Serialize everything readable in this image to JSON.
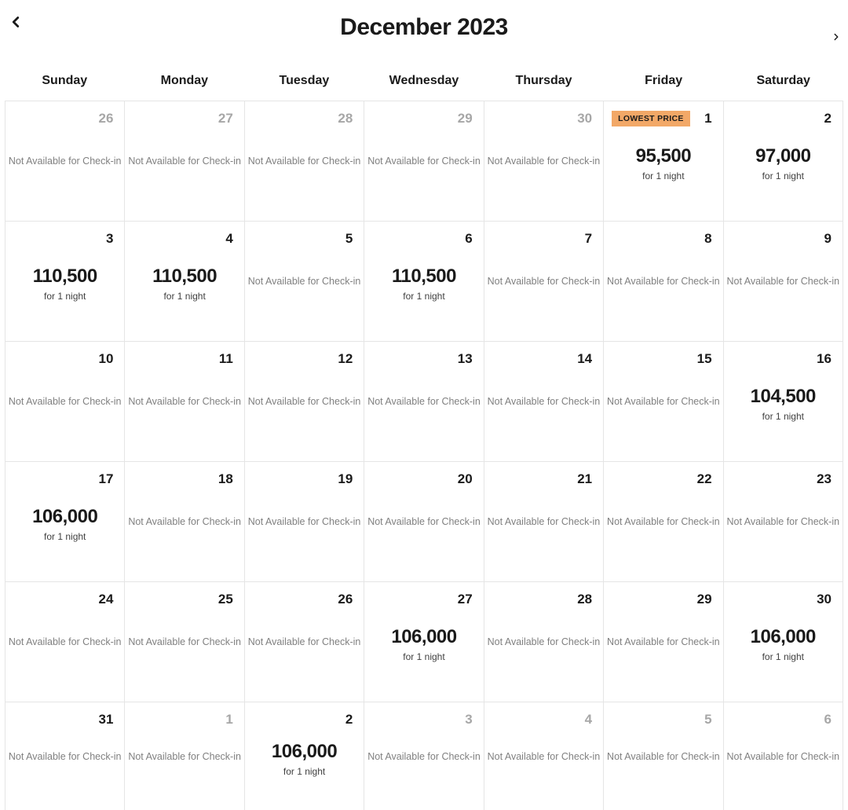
{
  "header": {
    "title": "December 2023"
  },
  "labels": {
    "not_available": "Not Available for Check-in",
    "per_night": "for 1 night",
    "lowest_price": "LOWEST PRICE"
  },
  "colors": {
    "badge_bg": "#f2a867",
    "border": "#e5e5e5",
    "muted_day": "#a7a7a7",
    "na_text": "#808080"
  },
  "daysOfWeek": [
    "Sunday",
    "Monday",
    "Tuesday",
    "Wednesday",
    "Thursday",
    "Friday",
    "Saturday"
  ],
  "cells": [
    {
      "day": "26",
      "muted": true,
      "na": true
    },
    {
      "day": "27",
      "muted": true,
      "na": true
    },
    {
      "day": "28",
      "muted": true,
      "na": true
    },
    {
      "day": "29",
      "muted": true,
      "na": true
    },
    {
      "day": "30",
      "muted": true,
      "na": true
    },
    {
      "day": "1",
      "price": "95,500",
      "badge": true
    },
    {
      "day": "2",
      "price": "97,000"
    },
    {
      "day": "3",
      "price": "110,500"
    },
    {
      "day": "4",
      "price": "110,500"
    },
    {
      "day": "5",
      "na": true
    },
    {
      "day": "6",
      "price": "110,500"
    },
    {
      "day": "7",
      "na": true
    },
    {
      "day": "8",
      "na": true
    },
    {
      "day": "9",
      "na": true
    },
    {
      "day": "10",
      "na": true
    },
    {
      "day": "11",
      "na": true
    },
    {
      "day": "12",
      "na": true
    },
    {
      "day": "13",
      "na": true
    },
    {
      "day": "14",
      "na": true
    },
    {
      "day": "15",
      "na": true
    },
    {
      "day": "16",
      "price": "104,500"
    },
    {
      "day": "17",
      "price": "106,000"
    },
    {
      "day": "18",
      "na": true
    },
    {
      "day": "19",
      "na": true
    },
    {
      "day": "20",
      "na": true
    },
    {
      "day": "21",
      "na": true
    },
    {
      "day": "22",
      "na": true
    },
    {
      "day": "23",
      "na": true
    },
    {
      "day": "24",
      "na": true
    },
    {
      "day": "25",
      "na": true
    },
    {
      "day": "26",
      "na": true
    },
    {
      "day": "27",
      "price": "106,000"
    },
    {
      "day": "28",
      "na": true
    },
    {
      "day": "29",
      "na": true
    },
    {
      "day": "30",
      "price": "106,000"
    },
    {
      "day": "31",
      "na": true
    },
    {
      "day": "1",
      "muted": true,
      "na": true
    },
    {
      "day": "2",
      "price": "106,000"
    },
    {
      "day": "3",
      "muted": true,
      "na": true
    },
    {
      "day": "4",
      "muted": true,
      "na": true
    },
    {
      "day": "5",
      "muted": true,
      "na": true
    },
    {
      "day": "6",
      "muted": true,
      "na": true
    }
  ]
}
